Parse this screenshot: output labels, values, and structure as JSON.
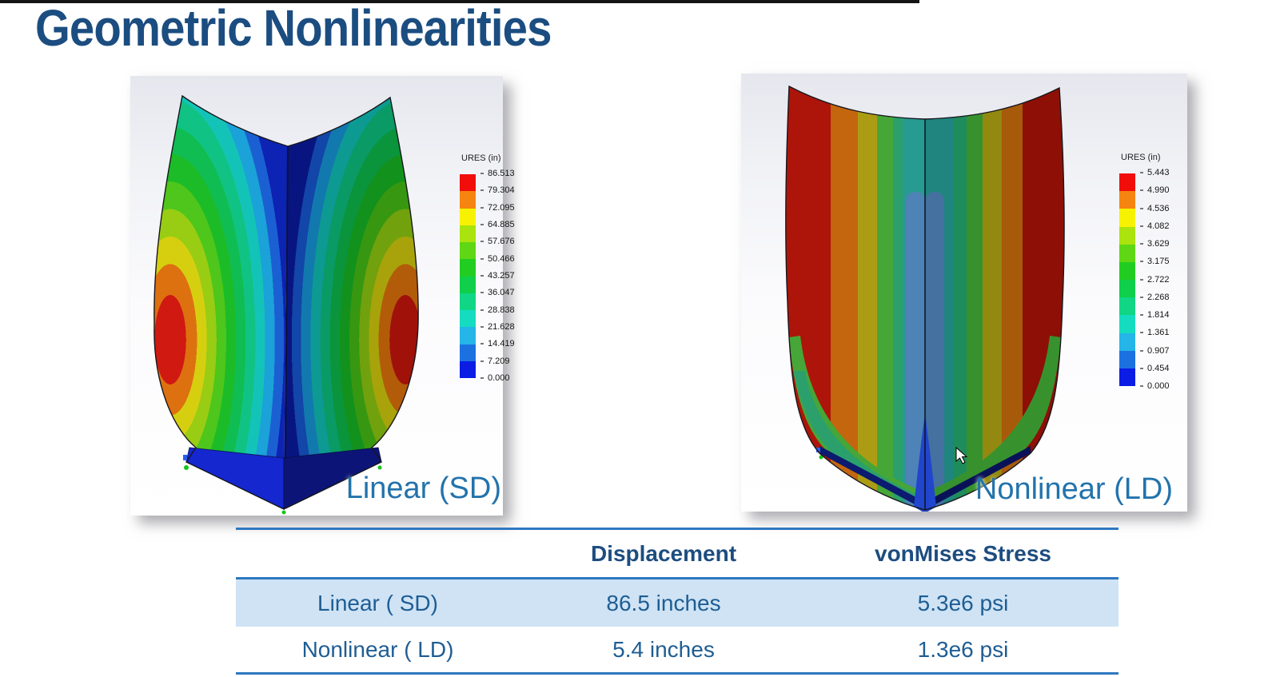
{
  "slide": {
    "title": "Geometric Nonlinearities"
  },
  "panels": {
    "linear": {
      "caption": "Linear (SD)",
      "legend": {
        "title": "URES (in)",
        "labels": [
          "86.513",
          "79.304",
          "72.095",
          "64.885",
          "57.676",
          "50.466",
          "43.257",
          "36.047",
          "28.838",
          "21.628",
          "14.419",
          "7.209",
          "0.000"
        ]
      }
    },
    "nonlinear": {
      "caption": "Nonlinear (LD)",
      "legend": {
        "title": "URES (in)",
        "labels": [
          "5.443",
          "4.990",
          "4.536",
          "4.082",
          "3.629",
          "3.175",
          "2.722",
          "2.268",
          "1.814",
          "1.361",
          "0.907",
          "0.454",
          "0.000"
        ]
      }
    }
  },
  "table": {
    "headers": [
      "",
      "Displacement",
      "vonMises Stress"
    ],
    "rows": [
      {
        "label": "Linear ( SD)",
        "displacement": "86.5 inches",
        "stress": "5.3e6 psi"
      },
      {
        "label": "Nonlinear ( LD)",
        "displacement": "5.4 inches",
        "stress": "1.3e6 psi"
      }
    ]
  },
  "colors": {
    "title_text": "#1b4d80",
    "caption_text": "#2273ac",
    "table_line": "#2e78c0",
    "table_header_text": "#1d4d80",
    "table_cell_text": "#1e5d93",
    "row_highlight": "#cfe3f5",
    "legend_palette": [
      "#f00d0a",
      "#f58410",
      "#f6f202",
      "#aae30e",
      "#5fd714",
      "#22cd22",
      "#0fcf4b",
      "#10d685",
      "#15dcc0",
      "#25b5e8",
      "#1c71e0",
      "#0b1ce4"
    ]
  }
}
